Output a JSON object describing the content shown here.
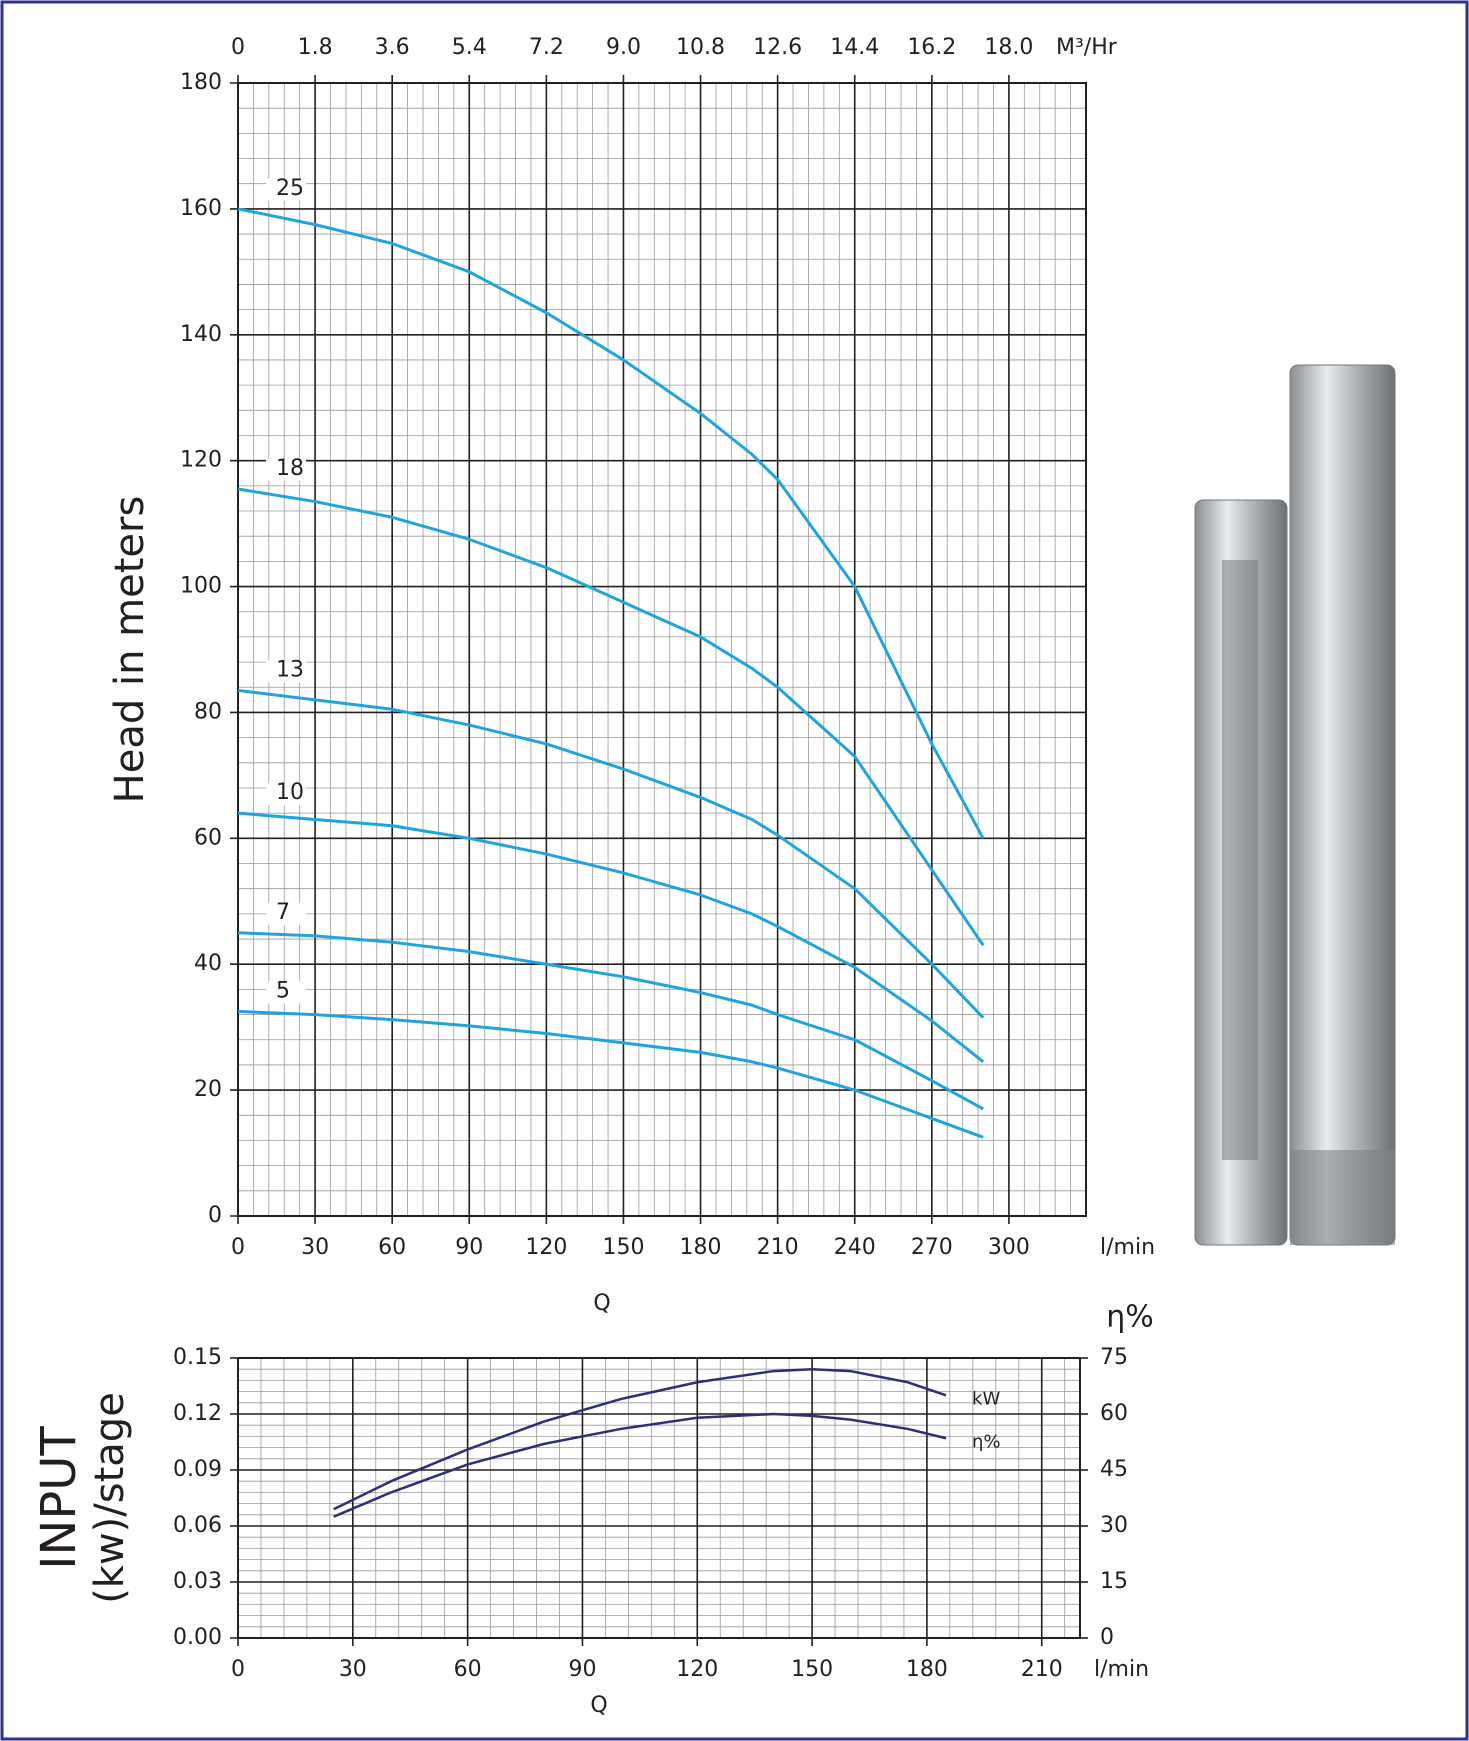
{
  "chart_data": [
    {
      "type": "line",
      "y_label": "Head in meters",
      "x_label": "Q",
      "x_unit": "l/min",
      "x2_unit": "M³/Hr",
      "xlim": [
        0,
        330
      ],
      "xticks": [
        0,
        30,
        60,
        90,
        120,
        150,
        180,
        210,
        240,
        270,
        300
      ],
      "x2lim": [
        0,
        19.8
      ],
      "x2ticks": [
        0,
        1.8,
        3.6,
        5.4,
        7.2,
        {
          "value": 9,
          "label": "9.0"
        },
        10.8,
        12.6,
        14.4,
        16.2,
        {
          "value": 18,
          "label": "18.0"
        }
      ],
      "ylim": [
        0,
        180
      ],
      "yticks": [
        0,
        20,
        40,
        60,
        80,
        100,
        120,
        140,
        160,
        180
      ],
      "grid": true,
      "minor_divisions": 5,
      "label_position": "start",
      "x": [
        0,
        30,
        60,
        90,
        120,
        150,
        180,
        200,
        210,
        240,
        270,
        290
      ],
      "series": [
        {
          "name": "25",
          "color": "#1ea5e0",
          "values": [
            160,
            157.5,
            154.5,
            150,
            143.5,
            136,
            127.5,
            121,
            117,
            100,
            75,
            60
          ]
        },
        {
          "name": "18",
          "color": "#1ea5e0",
          "values": [
            115.5,
            113.5,
            111,
            107.5,
            103,
            97.5,
            92,
            87,
            84,
            73,
            55,
            43
          ]
        },
        {
          "name": "13",
          "color": "#1ea5e0",
          "values": [
            83.5,
            82,
            80.5,
            78,
            75,
            71,
            66.5,
            63,
            60.5,
            52,
            40,
            31.5
          ]
        },
        {
          "name": "10",
          "color": "#1ea5e0",
          "values": [
            64,
            63,
            62,
            60,
            57.5,
            54.5,
            51,
            48,
            46,
            39.5,
            31,
            24.5
          ]
        },
        {
          "name": "7",
          "color": "#1ea5e0",
          "values": [
            45,
            44.5,
            43.5,
            42,
            40,
            38,
            35.5,
            33.5,
            32,
            28,
            21.5,
            17
          ]
        },
        {
          "name": "5",
          "color": "#1ea5e0",
          "values": [
            32.5,
            32,
            31.2,
            30.2,
            29,
            27.5,
            26,
            24.5,
            23.5,
            20,
            15.5,
            12.5
          ]
        }
      ]
    },
    {
      "type": "line",
      "y_label": "INPUT",
      "y_sublabel": "(kw)/stage",
      "y2_label": "η%",
      "x_label": "Q",
      "x_unit": "l/min",
      "xlim": [
        0,
        220
      ],
      "xticks": [
        0,
        30,
        60,
        90,
        120,
        150,
        180,
        210
      ],
      "ylim": [
        0,
        0.15
      ],
      "yticks": [
        {
          "value": 0,
          "label": "0.00"
        },
        0.03,
        0.06,
        0.09,
        0.12,
        0.15
      ],
      "y2lim": [
        0,
        75
      ],
      "y2ticks": [
        0,
        15,
        30,
        45,
        60,
        75
      ],
      "grid": true,
      "minor_divisions": 5,
      "label_position": "end",
      "x": [
        25,
        40,
        60,
        80,
        100,
        120,
        140,
        150,
        160,
        175,
        185
      ],
      "series": [
        {
          "name": "kW",
          "color": "#2e2f7a",
          "values": [
            0.069,
            0.084,
            0.101,
            0.116,
            0.128,
            0.137,
            0.143,
            0.144,
            0.143,
            0.137,
            0.13
          ]
        },
        {
          "name": "η%",
          "color": "#2e2f7a",
          "axis": "y2",
          "values": [
            32.5,
            39,
            46.5,
            52,
            56,
            59,
            60,
            59.5,
            58.5,
            56,
            53.5
          ]
        }
      ]
    }
  ]
}
